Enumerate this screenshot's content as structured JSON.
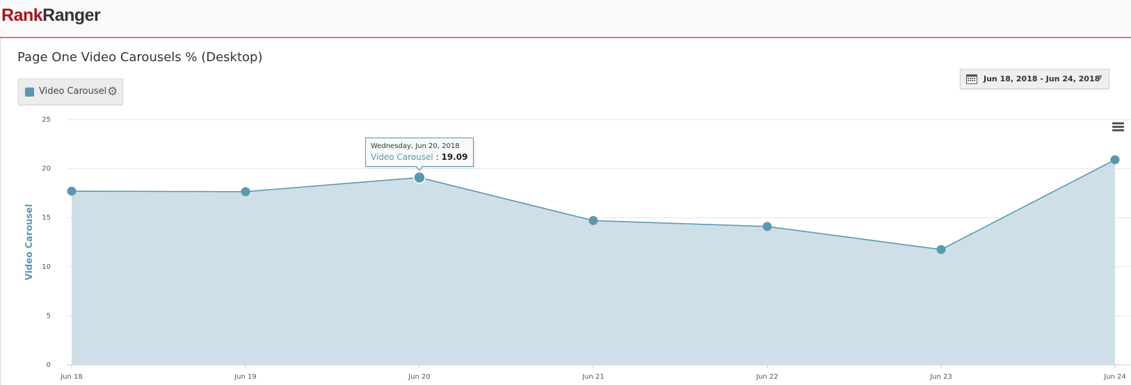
{
  "header": {
    "logo_part1": "Rank",
    "logo_part2": "Ranger"
  },
  "chart_panel": {
    "title": "Page One Video Carousels % (Desktop)",
    "legend_label": "Video Carousel",
    "date_range": "Jun 18, 2018 - Jun 24, 2018",
    "icons": {
      "legend_settings": "gear-icon",
      "date_picker": "calendar-icon",
      "dropdown": "caret-down-icon",
      "export_menu": "hamburger-menu-icon"
    }
  },
  "tooltip": {
    "date": "Wednesday, Jun 20, 2018",
    "series": "Video Carousel",
    "separator": ":",
    "value": "19.09",
    "index": 2
  },
  "chart_data": {
    "type": "area",
    "title": "Page One Video Carousels % (Desktop)",
    "xlabel": "",
    "ylabel": "Video Carousel",
    "categories": [
      "Jun 18",
      "Jun 19",
      "Jun 20",
      "Jun 21",
      "Jun 22",
      "Jun 23",
      "Jun 24"
    ],
    "series": [
      {
        "name": "Video Carousel",
        "values": [
          17.7,
          17.65,
          19.09,
          14.7,
          14.1,
          11.75,
          20.9
        ]
      }
    ],
    "yticks": [
      0,
      5,
      10,
      15,
      20,
      25
    ],
    "ylim": [
      0,
      25
    ],
    "grid": true,
    "legend_position": "top-left",
    "colors": {
      "line": "#5a98b0",
      "fill": "#cfdfe8",
      "grid": "#e6e6e6"
    }
  }
}
